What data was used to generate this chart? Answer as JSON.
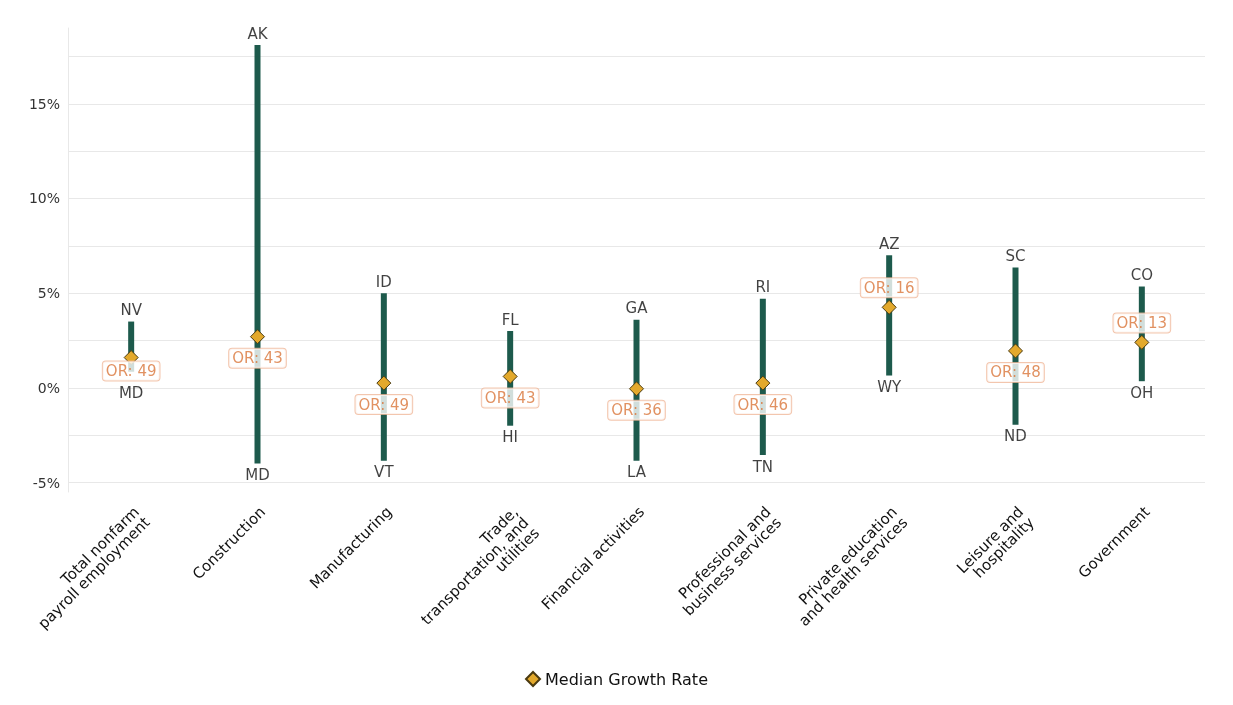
{
  "chart_data": {
    "type": "bar",
    "categories": [
      "Total nonfarm payroll employment",
      "Construction",
      "Manufacturing",
      "Trade, transportation, and utilities",
      "Financial activities",
      "Professional and business services",
      "Private education and health services",
      "Leisure and hospitality",
      "Government"
    ],
    "series": [
      {
        "color": "#1d5a4c",
        "base": [
          0.85,
          -4.0,
          -3.85,
          -2.0,
          -3.85,
          -3.55,
          0.65,
          -1.95,
          0.35
        ],
        "values": [
          2.65,
          22.1,
          8.85,
          5.0,
          7.45,
          8.25,
          6.35,
          8.3,
          5.0
        ]
      },
      {
        "type": "scatter",
        "name": "Median Growth Rate",
        "color": "#e3a92c",
        "marker": "diamond",
        "x": [
          "Total nonfarm payroll employment",
          "Construction",
          "Manufacturing",
          "Trade, transportation, and utilities",
          "Financial activities",
          "Professional and business services",
          "Private education and health services",
          "Leisure and hospitality",
          "Government"
        ],
        "values": [
          1.6,
          2.7,
          0.25,
          0.6,
          -0.05,
          0.25,
          4.25,
          1.95,
          2.4
        ]
      }
    ],
    "annotations": [
      "NV",
      "MD",
      "OR: 49",
      "AK",
      "MD",
      "OR: 43",
      "ID",
      "VT",
      "OR: 49",
      "FL",
      "HI",
      "OR: 43",
      "GA",
      "LA",
      "OR: 36",
      "RI",
      "TN",
      "OR: 46",
      "AZ",
      "WY",
      "OR: 16",
      "SC",
      "ND",
      "OR: 48",
      "CO",
      "OH",
      "OR: 13"
    ],
    "ylim": [
      -5.5,
      19
    ],
    "yticks": [
      {
        "value": -5,
        "label": "-5%"
      },
      {
        "value": -2.5,
        "label": null
      },
      {
        "value": 0,
        "label": "0%"
      },
      {
        "value": 2.5,
        "label": null
      },
      {
        "value": 5,
        "label": "5%"
      },
      {
        "value": 7.5,
        "label": null
      },
      {
        "value": 10,
        "label": "10%"
      },
      {
        "value": 12.5,
        "label": null
      },
      {
        "value": 15,
        "label": "15%"
      },
      {
        "value": 17.5,
        "label": null
      }
    ],
    "grid": "y",
    "legend": "bottom"
  }
}
